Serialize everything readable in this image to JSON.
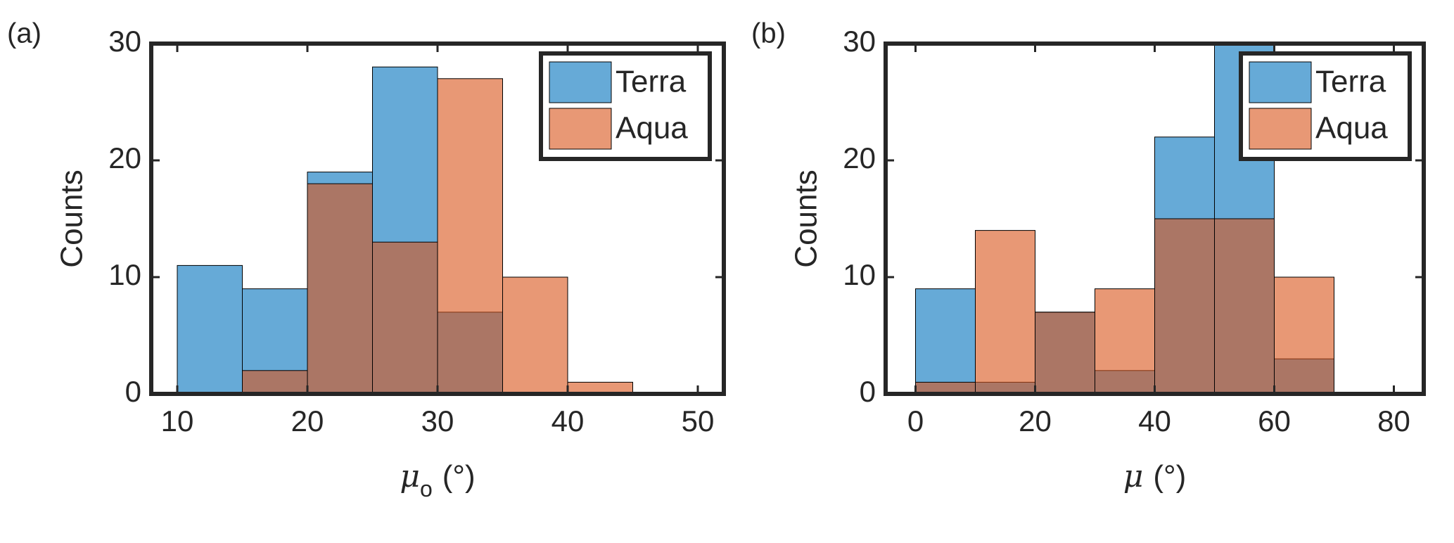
{
  "chart_data": [
    {
      "type": "histogram",
      "panel_label": "(a)",
      "ylabel": "Counts",
      "xlabel": {
        "symbol": "μ",
        "subscript": "o",
        "unit": "(°)"
      },
      "bins": [
        10,
        15,
        20,
        25,
        30,
        35,
        40,
        45
      ],
      "series": [
        {
          "name": "Terra",
          "color": "#0072BD",
          "values": [
            11,
            9,
            19,
            28,
            7,
            0,
            0
          ]
        },
        {
          "name": "Aqua",
          "color": "#D95319",
          "values": [
            0,
            2,
            18,
            13,
            27,
            10,
            1
          ]
        }
      ],
      "xlim": [
        8,
        52
      ],
      "ylim": [
        0,
        30
      ],
      "xticks": [
        10,
        20,
        30,
        40,
        50
      ],
      "yticks": [
        0,
        10,
        20,
        30
      ],
      "legend": "northeast"
    },
    {
      "type": "histogram",
      "panel_label": "(b)",
      "ylabel": "Counts",
      "xlabel": {
        "symbol": "μ",
        "unit": "(°)"
      },
      "bins": [
        0,
        10,
        20,
        30,
        40,
        50,
        60,
        70
      ],
      "series": [
        {
          "name": "Terra",
          "color": "#0072BD",
          "values": [
            9,
            1,
            7,
            2,
            22,
            30,
            3
          ]
        },
        {
          "name": "Aqua",
          "color": "#D95319",
          "values": [
            1,
            14,
            7,
            9,
            15,
            15,
            10
          ]
        }
      ],
      "xlim": [
        -5,
        85
      ],
      "ylim": [
        0,
        30
      ],
      "xticks": [
        0,
        20,
        40,
        60,
        80
      ],
      "yticks": [
        0,
        10,
        20,
        30
      ],
      "legend": "northeast"
    }
  ]
}
